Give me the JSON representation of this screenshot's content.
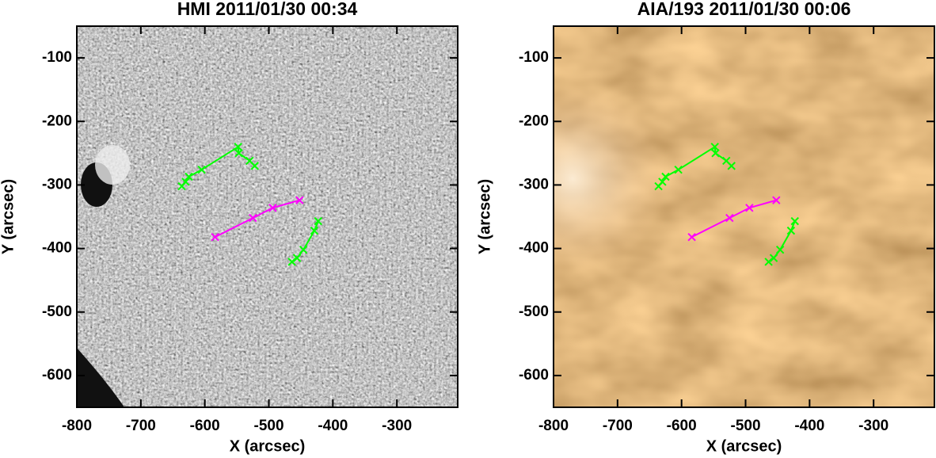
{
  "chart_data": [
    {
      "type": "line",
      "title": "HMI 2011/01/30 00:34",
      "x_label": "X (arcsec)",
      "y_label": "Y (arcsec)",
      "background": "hmi",
      "xlim": [
        -800,
        -205
      ],
      "ylim": [
        -650,
        -50
      ],
      "xticks": [
        -800,
        -700,
        -600,
        -500,
        -400,
        -300
      ],
      "yticks": [
        -600,
        -500,
        -400,
        -300,
        -200,
        -100
      ],
      "series": [
        {
          "color": "#00ff00",
          "x": [
            -636,
            -630,
            -625,
            -605,
            -548,
            -547,
            -530,
            -522
          ],
          "values": [
            -302,
            -295,
            -287,
            -276,
            -240,
            -250,
            -262,
            -270
          ]
        },
        {
          "color": "#ff00ff",
          "x": [
            -584,
            -525,
            -494,
            -452
          ],
          "values": [
            -382,
            -352,
            -336,
            -324
          ]
        },
        {
          "color": "#00ff00",
          "x": [
            -423,
            -429,
            -446,
            -456,
            -464
          ],
          "values": [
            -357,
            -372,
            -402,
            -415,
            -421
          ]
        }
      ]
    },
    {
      "type": "line",
      "title": "AIA/193 2011/01/30 00:06",
      "x_label": "X (arcsec)",
      "y_label": "Y (arcsec)",
      "background": "aia",
      "xlim": [
        -800,
        -205
      ],
      "ylim": [
        -650,
        -50
      ],
      "xticks": [
        -800,
        -700,
        -600,
        -500,
        -400,
        -300
      ],
      "yticks": [
        -600,
        -500,
        -400,
        -300,
        -200,
        -100
      ],
      "series": [
        {
          "color": "#00ff00",
          "x": [
            -636,
            -630,
            -625,
            -605,
            -548,
            -547,
            -530,
            -522
          ],
          "values": [
            -302,
            -295,
            -287,
            -276,
            -240,
            -250,
            -262,
            -270
          ]
        },
        {
          "color": "#ff00ff",
          "x": [
            -584,
            -525,
            -494,
            -452
          ],
          "values": [
            -382,
            -352,
            -336,
            -324
          ]
        },
        {
          "color": "#00ff00",
          "x": [
            -423,
            -429,
            -446,
            -456,
            -464
          ],
          "values": [
            -357,
            -372,
            -402,
            -415,
            -421
          ]
        }
      ]
    }
  ]
}
